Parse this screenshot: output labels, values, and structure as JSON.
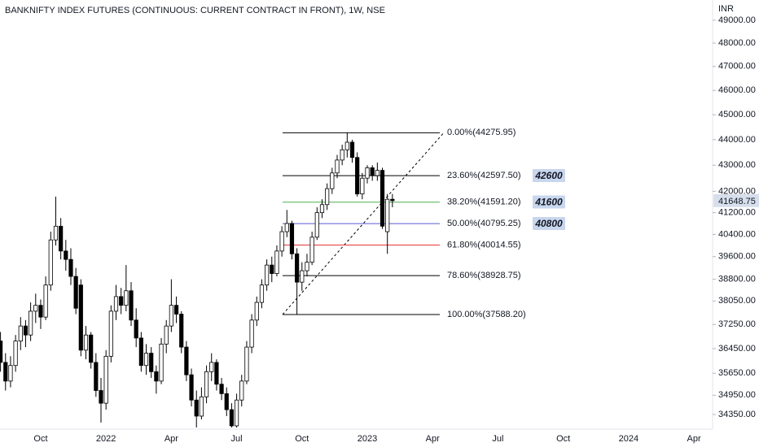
{
  "chart_data": {
    "type": "candlestick",
    "title": "BANKNIFTY INDEX FUTURES (CONTINUOUS: CURRENT CONTRACT IN FRONT), 1W, NSE",
    "y_unit": "INR",
    "log_scale": true,
    "grid": false,
    "ylim": [
      33900,
      49900
    ],
    "yticks": [
      {
        "value": 49000,
        "label": "49000.00"
      },
      {
        "value": 48000,
        "label": "48000.00"
      },
      {
        "value": 47000,
        "label": "47000.00"
      },
      {
        "value": 46000,
        "label": "46000.00"
      },
      {
        "value": 45000,
        "label": "45000.00"
      },
      {
        "value": 44000,
        "label": "44000.00"
      },
      {
        "value": 43000,
        "label": "43000.00"
      },
      {
        "value": 42000,
        "label": "42000.00"
      },
      {
        "value": 41200,
        "label": "41200.00"
      },
      {
        "value": 40400,
        "label": "40400.00"
      },
      {
        "value": 39600,
        "label": "39600.00"
      },
      {
        "value": 38800,
        "label": "38800.00"
      },
      {
        "value": 38050,
        "label": "38050.00"
      },
      {
        "value": 37250,
        "label": "37250.00"
      },
      {
        "value": 36450,
        "label": "36450.00"
      },
      {
        "value": 35650,
        "label": "35650.00"
      },
      {
        "value": 34950,
        "label": "34950.00"
      },
      {
        "value": 34350,
        "label": "34350.00"
      }
    ],
    "categories": [
      null,
      null,
      null,
      null,
      null,
      null,
      null,
      null,
      "Oct",
      null,
      null,
      null,
      null,
      null,
      null,
      null,
      null,
      null,
      null,
      null,
      null,
      "2022",
      null,
      null,
      null,
      null,
      null,
      null,
      null,
      null,
      null,
      null,
      null,
      null,
      "Apr",
      null,
      null,
      null,
      null,
      null,
      null,
      null,
      null,
      null,
      null,
      null,
      null,
      "Jul",
      null,
      null,
      null,
      null,
      null,
      null,
      null,
      null,
      null,
      null,
      null,
      null,
      "Oct",
      null,
      null,
      null,
      null,
      null,
      null,
      null,
      null,
      null,
      null,
      null,
      null,
      "2023",
      null,
      null,
      null,
      null,
      null,
      null,
      null,
      null,
      null,
      null,
      null,
      null,
      "Apr",
      null,
      null,
      null,
      null,
      null,
      null,
      null,
      null,
      null,
      null,
      null,
      null,
      "Jul",
      null,
      null,
      null,
      null,
      null,
      null,
      null,
      null,
      null,
      null,
      null,
      null,
      "Oct",
      null,
      null,
      null,
      null,
      null,
      null,
      null,
      null,
      null,
      null,
      null,
      null,
      "2024",
      null,
      null,
      null,
      null,
      null,
      null,
      null,
      null,
      null,
      null,
      null,
      null,
      "Apr"
    ],
    "open": [
      36700,
      36000,
      35400,
      35900,
      36700,
      37200,
      36900,
      37700,
      37900,
      37500,
      38600,
      40200,
      40700,
      39800,
      39500,
      38900,
      38600,
      36400,
      36900,
      36000,
      35100,
      34700,
      36200,
      37700,
      38200,
      37900,
      38400,
      37400,
      36800,
      35900,
      36300,
      35700,
      35400,
      36600,
      37200,
      37900,
      37600,
      36500,
      35600,
      34800,
      34300,
      34900,
      35700,
      36000,
      35300,
      35000,
      34500,
      34000,
      34800,
      35400,
      36500,
      37400,
      38000,
      38600,
      39300,
      39000,
      39800,
      40500,
      40800,
      39700,
      38700,
      39100,
      39400,
      40300,
      41200,
      41500,
      42100,
      42700,
      43200,
      43600,
      43900,
      43300,
      41900,
      42500,
      42900,
      42600,
      42800,
      40500,
      41700,
      null,
      null,
      null,
      null,
      null,
      null,
      null,
      null,
      null,
      null,
      null,
      null,
      null,
      null,
      null,
      null,
      null,
      null,
      null,
      null,
      null,
      null,
      null,
      null,
      null,
      null,
      null,
      null,
      null,
      null,
      null,
      null,
      null,
      null,
      null,
      null,
      null,
      null,
      null,
      null,
      null,
      null,
      null,
      null,
      null,
      null,
      null,
      null,
      null,
      null,
      null,
      null,
      null,
      null,
      null,
      null,
      null,
      null,
      null,
      null
    ],
    "high": [
      37000,
      36300,
      36200,
      36900,
      37500,
      37400,
      38000,
      38300,
      38100,
      38900,
      40500,
      41800,
      41000,
      40200,
      39900,
      39200,
      38800,
      37200,
      37000,
      36300,
      35500,
      36400,
      37900,
      38600,
      38500,
      39300,
      38700,
      37800,
      37000,
      36600,
      36500,
      35900,
      36800,
      37400,
      38800,
      38200,
      37700,
      36700,
      35800,
      35100,
      35200,
      35900,
      36300,
      36100,
      35500,
      35200,
      34700,
      35000,
      35600,
      36700,
      37600,
      38200,
      38800,
      39500,
      39600,
      40000,
      40700,
      41300,
      40900,
      39900,
      39400,
      39700,
      40500,
      41400,
      41700,
      42300,
      42900,
      43400,
      43800,
      44275.95,
      44000,
      43500,
      42700,
      43000,
      43000,
      43100,
      42900,
      41900,
      41900,
      null,
      null,
      null,
      null,
      null,
      null,
      null,
      null,
      null,
      null,
      null,
      null,
      null,
      null,
      null,
      null,
      null,
      null,
      null,
      null,
      null,
      null,
      null,
      null,
      null,
      null,
      null,
      null,
      null,
      null,
      null,
      null,
      null,
      null,
      null,
      null,
      null,
      null,
      null,
      null,
      null,
      null,
      null,
      null,
      null,
      null,
      null,
      null,
      null,
      null,
      null,
      null,
      null,
      null,
      null,
      null,
      null,
      null,
      null,
      null
    ],
    "low": [
      35700,
      35100,
      35200,
      35700,
      36400,
      36500,
      36700,
      37300,
      37100,
      37400,
      38400,
      40000,
      39500,
      39100,
      38600,
      37600,
      36200,
      36100,
      35800,
      34900,
      34100,
      34500,
      36000,
      37400,
      37600,
      37700,
      37200,
      36500,
      35700,
      35600,
      35500,
      35000,
      35300,
      36300,
      37000,
      37300,
      36300,
      35400,
      34600,
      33950,
      34200,
      34700,
      35400,
      35100,
      34800,
      34300,
      33950,
      33950,
      34600,
      35300,
      36300,
      37200,
      37800,
      38400,
      38700,
      38900,
      39600,
      40300,
      39500,
      37588.2,
      38400,
      38900,
      39300,
      40200,
      41000,
      41300,
      41900,
      42500,
      43000,
      43300,
      43100,
      41800,
      41700,
      42300,
      42400,
      42400,
      40600,
      39700,
      41400,
      null,
      null,
      null,
      null,
      null,
      null,
      null,
      null,
      null,
      null,
      null,
      null,
      null,
      null,
      null,
      null,
      null,
      null,
      null,
      null,
      null,
      null,
      null,
      null,
      null,
      null,
      null,
      null,
      null,
      null,
      null,
      null,
      null,
      null,
      null,
      null,
      null,
      null,
      null,
      null,
      null,
      null,
      null,
      null,
      null,
      null,
      null,
      null,
      null,
      null,
      null,
      null,
      null,
      null,
      null,
      null,
      null,
      null,
      null,
      null
    ],
    "close": [
      36000,
      35400,
      35900,
      36700,
      37200,
      36900,
      37700,
      37900,
      37500,
      38600,
      40200,
      40700,
      39800,
      39500,
      38900,
      37800,
      36400,
      36900,
      36000,
      35100,
      34700,
      36200,
      37700,
      38200,
      37900,
      38400,
      37400,
      36800,
      35900,
      36300,
      35700,
      35400,
      36600,
      37200,
      37900,
      37600,
      36500,
      35600,
      34800,
      34300,
      34900,
      35700,
      36000,
      35300,
      35000,
      34500,
      34000,
      34800,
      35400,
      36500,
      37400,
      38000,
      38600,
      39300,
      39000,
      39800,
      40500,
      40800,
      39700,
      38700,
      39100,
      39400,
      40300,
      41200,
      41500,
      42100,
      42700,
      43200,
      43600,
      43900,
      43300,
      41900,
      42500,
      42900,
      42600,
      42800,
      40700,
      41700,
      41648.75,
      null,
      null,
      null,
      null,
      null,
      null,
      null,
      null,
      null,
      null,
      null,
      null,
      null,
      null,
      null,
      null,
      null,
      null,
      null,
      null,
      null,
      null,
      null,
      null,
      null,
      null,
      null,
      null,
      null,
      null,
      null,
      null,
      null,
      null,
      null,
      null,
      null,
      null,
      null,
      null,
      null,
      null,
      null,
      null,
      null,
      null,
      null,
      null,
      null,
      null,
      null,
      null,
      null,
      null,
      null,
      null,
      null,
      null,
      null,
      null
    ],
    "up_color": "#ffffff",
    "down_color": "#000000",
    "fib_levels": [
      {
        "label": "0.00%(44275.95)",
        "value": 44275.95,
        "color": "#000000"
      },
      {
        "label": "23.60%(42597.50)",
        "value": 42597.5,
        "color": "#000000"
      },
      {
        "label": "38.20%(41591.20)",
        "value": 41591.2,
        "color": "#4caf50"
      },
      {
        "label": "50.00%(40795.25)",
        "value": 40795.25,
        "color": "#5b5bd6"
      },
      {
        "label": "61.80%(40014.55)",
        "value": 40014.55,
        "color": "#e53935"
      },
      {
        "label": "78.60%(38928.75)",
        "value": 38928.75,
        "color": "#000000"
      },
      {
        "label": "100.00%(37588.20)",
        "value": 37588.2,
        "color": "#000000"
      }
    ],
    "trend_line": {
      "from": 37588.2,
      "to": 44275.95
    },
    "annotations": [
      42600,
      41600,
      40800
    ],
    "annotation_color": "#c8d6ee",
    "last_price": {
      "value": 41648.75,
      "label": "41648.75"
    }
  }
}
